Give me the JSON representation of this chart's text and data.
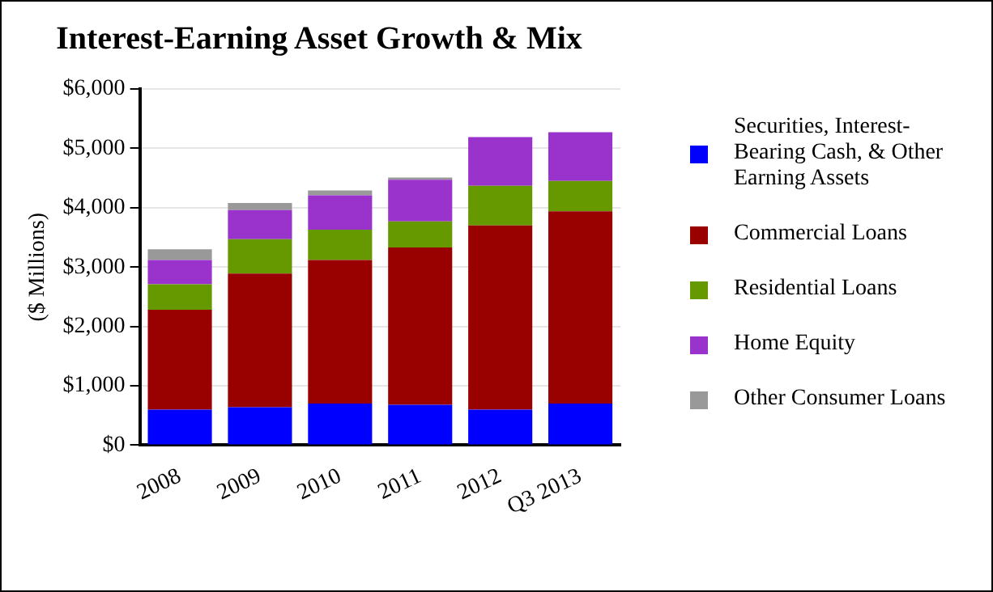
{
  "chart_data": {
    "type": "bar",
    "title": "Interest-Earning Asset Growth & Mix",
    "ylabel": "($ Millions)",
    "stacked": true,
    "categories": [
      "2008",
      "2009",
      "2010",
      "2011",
      "2012",
      "Q3 2013"
    ],
    "series": [
      {
        "name": "Securities, Interest-Bearing Cash, & Other Earning Assets",
        "color": "#0000ff",
        "values": [
          600,
          640,
          700,
          680,
          600,
          700
        ]
      },
      {
        "name": "Commercial Loans",
        "color": "#990000",
        "values": [
          1680,
          2250,
          2420,
          2650,
          3100,
          3240
        ]
      },
      {
        "name": "Residential Loans",
        "color": "#669900",
        "values": [
          430,
          580,
          510,
          440,
          670,
          510
        ]
      },
      {
        "name": "Home Equity",
        "color": "#9933cc",
        "values": [
          410,
          490,
          580,
          700,
          820,
          820
        ]
      },
      {
        "name": "Other Consumer Loans",
        "color": "#999999",
        "values": [
          180,
          120,
          80,
          40,
          0,
          0
        ]
      }
    ],
    "ylim": [
      0,
      6000
    ],
    "yticks": [
      {
        "value": 0,
        "label": "$0"
      },
      {
        "value": 1000,
        "label": "$1,000"
      },
      {
        "value": 2000,
        "label": "$2,000"
      },
      {
        "value": 3000,
        "label": "$3,000"
      },
      {
        "value": 4000,
        "label": "$4,000"
      },
      {
        "value": 5000,
        "label": "$5,000"
      },
      {
        "value": 6000,
        "label": "$6,000"
      }
    ],
    "grid": "y",
    "legend": "right"
  }
}
